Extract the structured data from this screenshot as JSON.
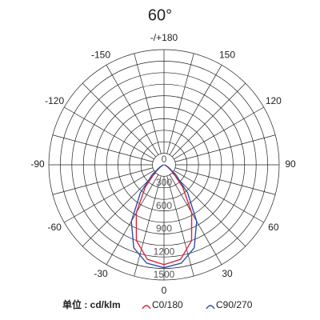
{
  "chart_data": {
    "type": "polar",
    "title": "60°",
    "unit_label": "单位 : cd/klm",
    "x": [
      -90,
      -80,
      -70,
      -60,
      -50,
      -40,
      -30,
      -20,
      -10,
      0,
      10,
      20,
      30,
      40,
      50,
      60,
      70,
      80,
      90
    ],
    "series": [
      {
        "name": "C0/180",
        "color": "#d9263a",
        "values": [
          5,
          10,
          20,
          50,
          150,
          380,
          720,
          1050,
          1250,
          1300,
          1250,
          1050,
          720,
          380,
          150,
          50,
          20,
          10,
          5
        ]
      },
      {
        "name": "C90/270",
        "color": "#2c4fa8",
        "values": [
          5,
          10,
          25,
          70,
          200,
          480,
          850,
          1150,
          1300,
          1340,
          1300,
          1150,
          850,
          480,
          200,
          70,
          25,
          10,
          5
        ]
      }
    ],
    "rlim": [
      0,
      1500
    ],
    "rticks": [
      0,
      300,
      600,
      900,
      1200,
      1500
    ],
    "angle_ticks": [
      0,
      30,
      60,
      90,
      120,
      150,
      {
        "value": 180,
        "label": "-/+180"
      },
      -150,
      -120,
      -90,
      -60,
      -30
    ]
  }
}
